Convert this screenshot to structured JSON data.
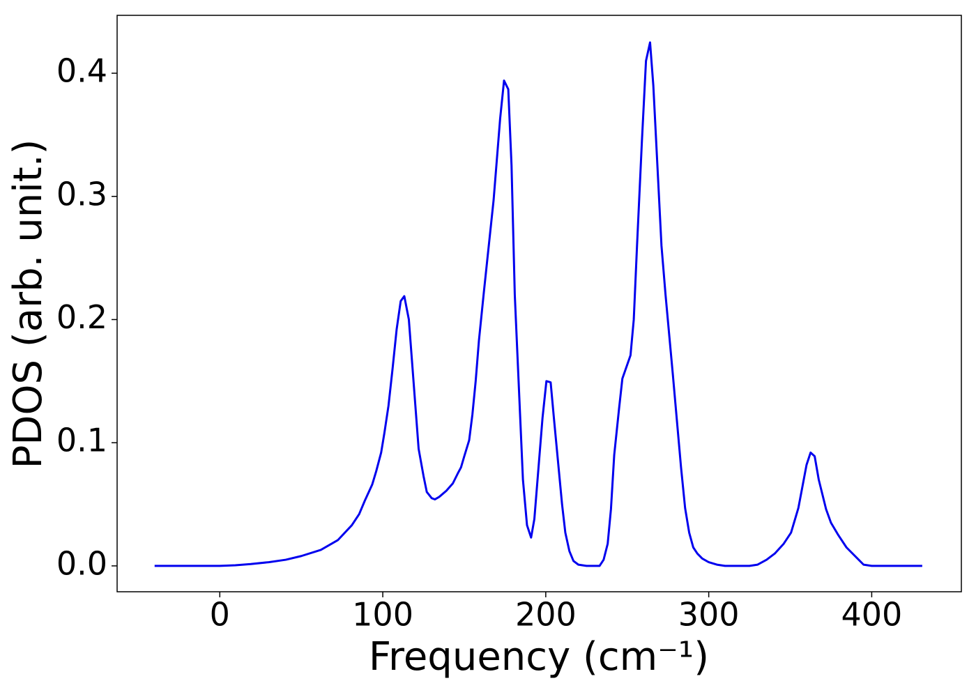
{
  "chart_data": {
    "type": "line",
    "xlabel": "Frequency (cm⁻¹)",
    "ylabel": "PDOS (arb. unit.)",
    "color": "#0000ee",
    "x": [
      -40,
      0,
      9.5,
      19,
      30,
      40.5,
      50,
      62,
      72.5,
      81,
      85.5,
      89,
      93.5,
      96,
      99,
      101,
      103.5,
      106,
      108.5,
      111,
      113.2,
      116,
      120,
      122,
      125,
      127,
      130,
      132,
      134.6,
      139,
      143,
      146,
      148,
      150,
      153,
      155,
      157,
      159,
      162,
      168,
      172,
      174.4,
      177,
      179,
      181,
      186,
      188.5,
      191,
      193,
      198,
      200.4,
      203,
      205,
      210,
      212,
      214.5,
      217,
      220,
      225,
      233,
      235.5,
      238,
      240,
      242,
      245,
      247,
      252,
      254,
      256,
      259,
      261.5,
      264,
      266,
      271,
      273.5,
      278,
      283,
      285.5,
      288,
      290.5,
      293,
      296,
      300,
      305,
      310,
      325,
      330,
      335.5,
      340.5,
      346,
      350.5,
      355,
      360,
      362.5,
      365,
      367.5,
      372,
      375,
      379.5,
      384.5,
      392,
      395,
      400,
      431
    ],
    "values": [
      0,
      0,
      0.0005,
      0.0015,
      0.003,
      0.005,
      0.008,
      0.013,
      0.021,
      0.033,
      0.042,
      0.053,
      0.066,
      0.077,
      0.092,
      0.108,
      0.13,
      0.16,
      0.192,
      0.215,
      0.219,
      0.2,
      0.13,
      0.095,
      0.073,
      0.06,
      0.055,
      0.054,
      0.056,
      0.061,
      0.067,
      0.075,
      0.08,
      0.089,
      0.102,
      0.123,
      0.15,
      0.183,
      0.222,
      0.297,
      0.363,
      0.394,
      0.387,
      0.325,
      0.22,
      0.07,
      0.033,
      0.023,
      0.038,
      0.12,
      0.15,
      0.149,
      0.12,
      0.05,
      0.027,
      0.012,
      0.004,
      0.001,
      0,
      0,
      0.005,
      0.018,
      0.046,
      0.09,
      0.128,
      0.152,
      0.171,
      0.2,
      0.26,
      0.345,
      0.41,
      0.425,
      0.39,
      0.26,
      0.22,
      0.155,
      0.08,
      0.047,
      0.027,
      0.015,
      0.01,
      0.006,
      0.003,
      0.001,
      0,
      0,
      0.001,
      0.005,
      0.01,
      0.018,
      0.027,
      0.047,
      0.082,
      0.092,
      0.089,
      0.07,
      0.046,
      0.035,
      0.025,
      0.015,
      0.005,
      0.001,
      0,
      0
    ],
    "xlim": [
      -63,
      455
    ],
    "ylim": [
      -0.021,
      0.447
    ],
    "xticks": [
      0,
      100,
      200,
      300,
      400
    ],
    "yticks": [
      {
        "value": 0,
        "label": "0.0"
      },
      0.1,
      0.2,
      0.3,
      0.4
    ],
    "grid": false
  }
}
